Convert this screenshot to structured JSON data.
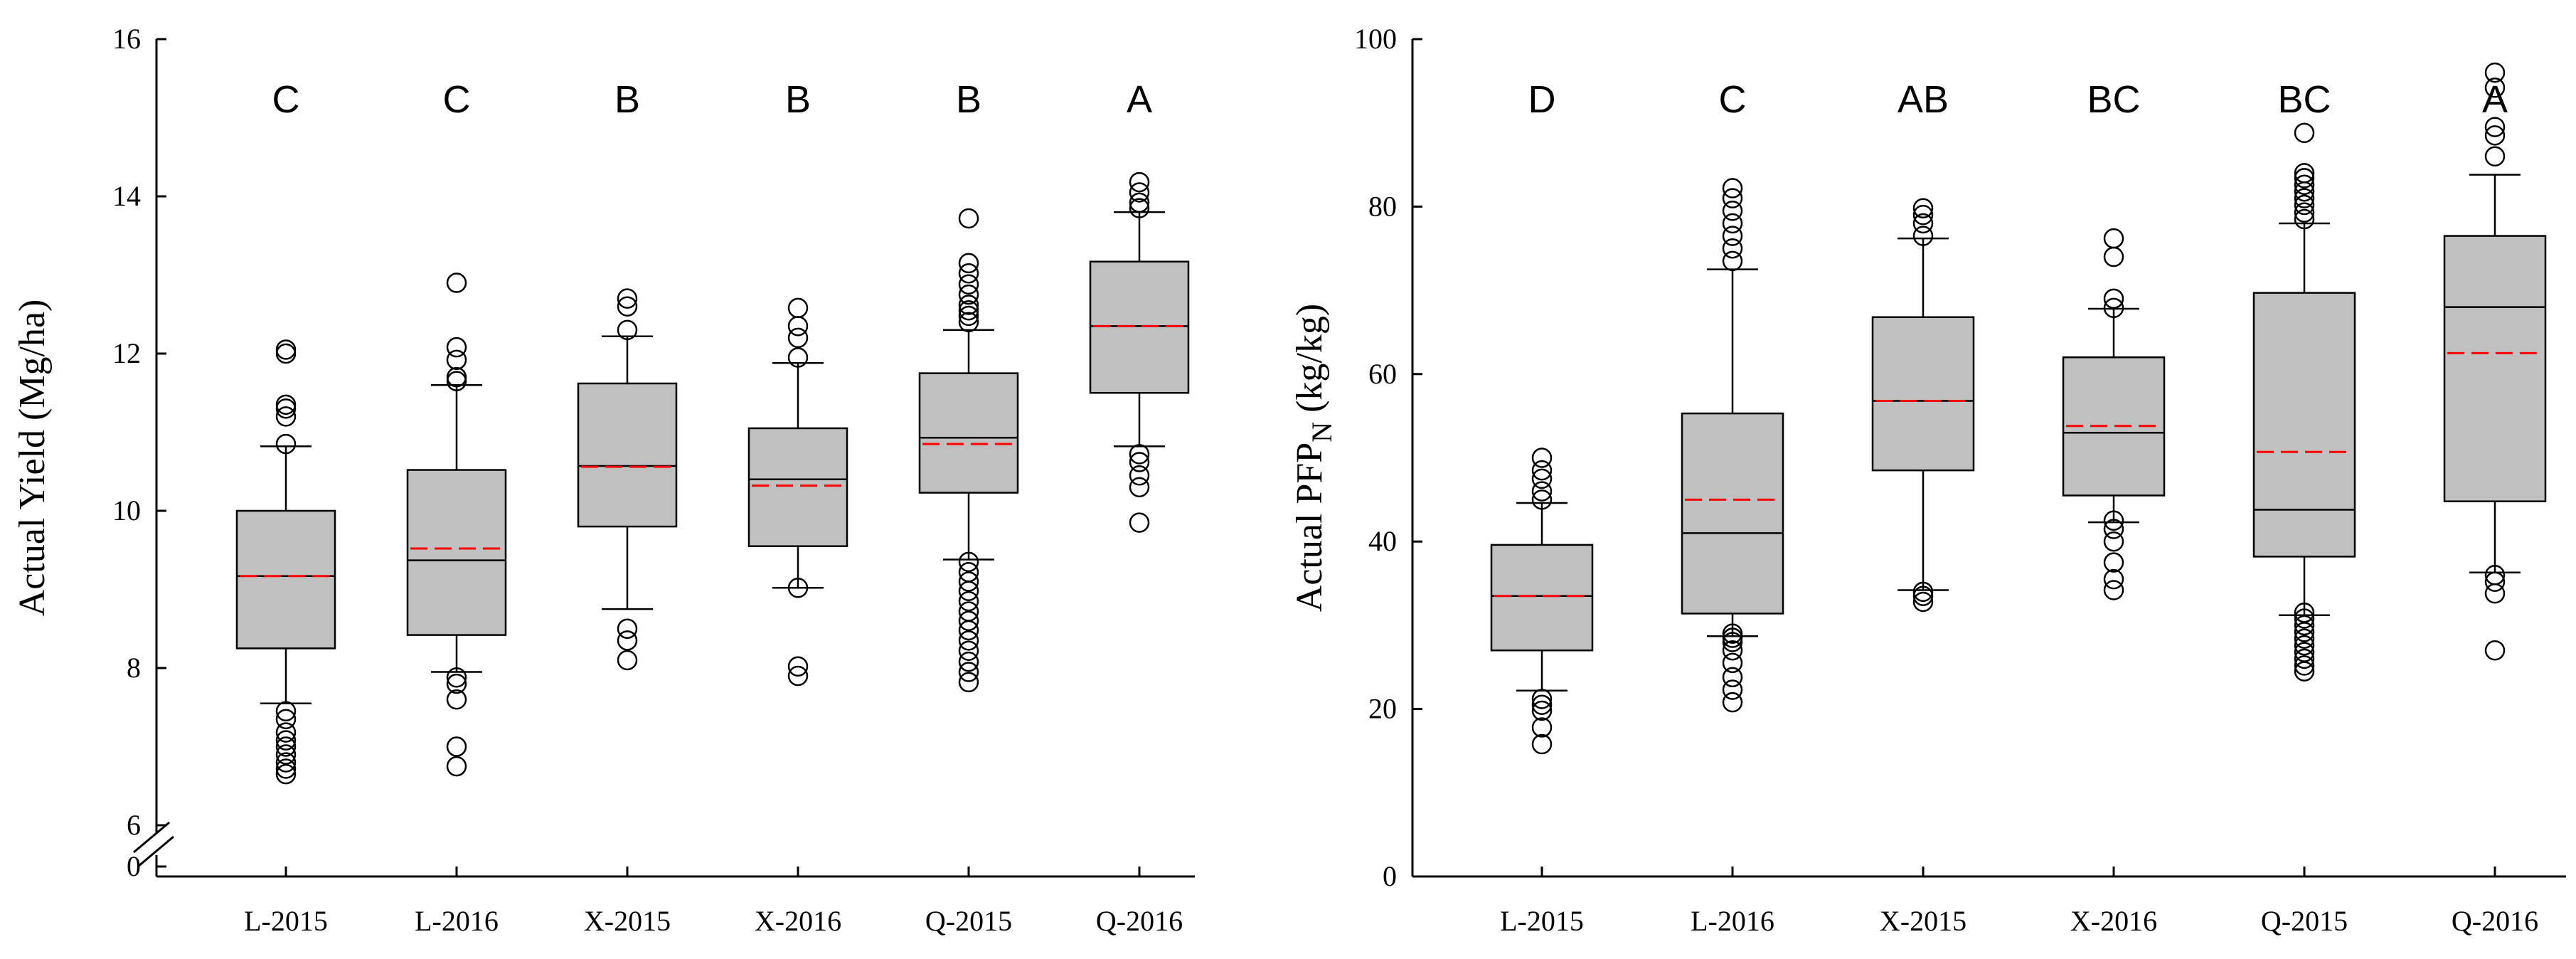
{
  "chart_data": [
    {
      "type": "boxplot",
      "ylabel": "Actual Yield (Mg/ha)",
      "ylim": [
        6,
        16
      ],
      "yticks": [
        6,
        8,
        10,
        12,
        14,
        16
      ],
      "axis_break": true,
      "break_label": "0",
      "categories": [
        "L-2015",
        "L-2016",
        "X-2015",
        "X-2016",
        "Q-2015",
        "Q-2016"
      ],
      "significance": [
        "C",
        "C",
        "B",
        "B",
        "B",
        "A"
      ],
      "boxes": [
        {
          "whisker_low": 7.55,
          "q1": 8.25,
          "median": 9.17,
          "mean": 9.17,
          "q3": 10.0,
          "whisker_high": 10.82,
          "outliers": [
            6.65,
            6.72,
            6.8,
            6.9,
            7.0,
            7.08,
            7.18,
            7.35,
            7.45,
            10.85,
            11.2,
            11.3,
            11.35,
            12.0,
            12.05
          ]
        },
        {
          "whisker_low": 7.95,
          "q1": 8.42,
          "median": 9.37,
          "mean": 9.52,
          "q3": 10.52,
          "whisker_high": 11.6,
          "outliers": [
            6.75,
            7.0,
            7.6,
            7.8,
            7.88,
            11.65,
            11.7,
            11.92,
            12.08,
            12.9
          ]
        },
        {
          "whisker_low": 8.75,
          "q1": 9.8,
          "median": 10.57,
          "mean": 10.56,
          "q3": 11.62,
          "whisker_high": 12.22,
          "outliers": [
            8.1,
            8.35,
            8.5,
            12.3,
            12.6,
            12.7
          ]
        },
        {
          "whisker_low": 9.02,
          "q1": 9.55,
          "median": 10.4,
          "mean": 10.32,
          "q3": 11.05,
          "whisker_high": 11.88,
          "outliers": [
            7.9,
            8.02,
            9.02,
            11.95,
            12.2,
            12.35,
            12.58
          ]
        },
        {
          "whisker_low": 9.38,
          "q1": 10.23,
          "median": 10.93,
          "mean": 10.85,
          "q3": 11.75,
          "whisker_high": 12.3,
          "outliers": [
            7.82,
            7.95,
            8.08,
            8.22,
            8.35,
            8.48,
            8.6,
            8.72,
            8.85,
            8.98,
            9.1,
            9.22,
            9.35,
            12.4,
            12.48,
            12.55,
            12.62,
            12.75,
            12.88,
            13.02,
            13.15,
            13.72
          ]
        },
        {
          "whisker_low": 10.82,
          "q1": 11.5,
          "median": 12.35,
          "mean": 12.35,
          "q3": 13.17,
          "whisker_high": 13.8,
          "outliers": [
            9.85,
            10.3,
            10.45,
            10.62,
            10.72,
            13.85,
            13.92,
            14.05,
            14.18
          ]
        }
      ]
    },
    {
      "type": "boxplot",
      "ylabel": "Actual PFP",
      "ylabel_sub": "N",
      "ylabel_unit": " (kg/kg)",
      "ylim": [
        0,
        100
      ],
      "yticks": [
        0,
        20,
        40,
        60,
        80,
        100
      ],
      "categories": [
        "L-2015",
        "L-2016",
        "X-2015",
        "X-2016",
        "Q-2015",
        "Q-2016"
      ],
      "significance": [
        "D",
        "C",
        "AB",
        "BC",
        "BC",
        "A"
      ],
      "boxes": [
        {
          "whisker_low": 22.2,
          "q1": 27.0,
          "median": 33.5,
          "mean": 33.5,
          "q3": 39.6,
          "whisker_high": 44.6,
          "outliers": [
            15.8,
            17.8,
            19.8,
            20.5,
            21.2,
            45.0,
            46.0,
            47.5,
            48.5,
            50.0
          ]
        },
        {
          "whisker_low": 28.7,
          "q1": 31.4,
          "median": 41.0,
          "mean": 45.0,
          "q3": 55.3,
          "whisker_high": 72.5,
          "outliers": [
            20.8,
            22.3,
            23.8,
            25.5,
            27.0,
            28.0,
            28.5,
            29.0,
            73.5,
            75.0,
            76.5,
            78.0,
            79.5,
            81.0,
            82.2
          ]
        },
        {
          "whisker_low": 34.2,
          "q1": 48.5,
          "median": 56.8,
          "mean": 56.8,
          "q3": 66.8,
          "whisker_high": 76.2,
          "outliers": [
            32.8,
            33.5,
            34.0,
            76.5,
            78.0,
            79.0,
            79.8
          ]
        },
        {
          "whisker_low": 42.3,
          "q1": 45.5,
          "median": 53.0,
          "mean": 53.8,
          "q3": 62.0,
          "whisker_high": 67.8,
          "outliers": [
            34.2,
            35.5,
            37.5,
            40.0,
            41.5,
            42.5,
            67.9,
            69.0,
            74.0,
            76.2
          ]
        },
        {
          "whisker_low": 31.2,
          "q1": 38.2,
          "median": 43.8,
          "mean": 50.7,
          "q3": 69.7,
          "whisker_high": 78.0,
          "outliers": [
            24.5,
            25.2,
            26.0,
            26.8,
            27.6,
            28.4,
            29.2,
            30.0,
            30.8,
            31.5,
            78.5,
            79.3,
            80.2,
            81.0,
            81.8,
            82.6,
            83.4,
            84.0,
            88.8
          ]
        },
        {
          "whisker_low": 36.3,
          "q1": 44.8,
          "median": 68.0,
          "mean": 62.5,
          "q3": 76.5,
          "whisker_high": 83.8,
          "outliers": [
            27.0,
            33.8,
            35.2,
            36.0,
            86.0,
            88.5,
            89.5,
            94.2,
            96.0
          ]
        }
      ]
    }
  ],
  "colors": {
    "box_fill": "#c0c0c0",
    "mean_line": "#ff0000",
    "line": "#000000"
  }
}
